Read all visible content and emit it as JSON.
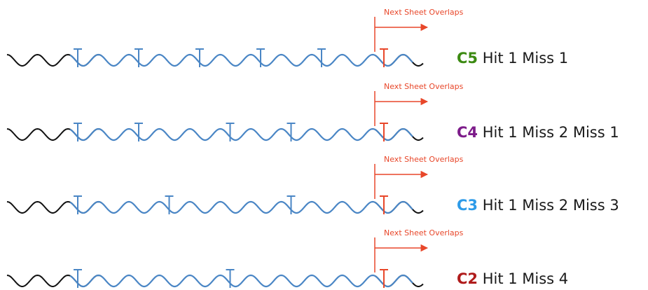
{
  "colors": {
    "sheet_blue": "#4a86c5",
    "sheet_black": "#111111",
    "overlap_red": "#e8472a",
    "c5": "#3c8a12",
    "c4": "#7d1c8a",
    "c3": "#2e9be8",
    "c2": "#b01c1c"
  },
  "overlap_label": "Next Sheet Overlaps",
  "rows": [
    {
      "code": "C5",
      "code_color": "#3c8a12",
      "description": "Hit 1 Miss 1",
      "fixings_crests": [
        2,
        4,
        6,
        8,
        10
      ],
      "end_crest": 12
    },
    {
      "code": "C4",
      "code_color": "#7d1c8a",
      "description": "Hit 1 Miss 2 Miss 1",
      "fixings_crests": [
        2,
        4,
        7,
        9
      ],
      "end_crest": 12
    },
    {
      "code": "C3",
      "code_color": "#2e9be8",
      "description": "Hit 1 Miss 2 Miss 3",
      "fixings_crests": [
        2,
        5,
        9
      ],
      "end_crest": 12
    },
    {
      "code": "C2",
      "code_color": "#b01c1c",
      "description": "Hit 1 Miss 4",
      "fixings_crests": [
        2,
        7
      ],
      "end_crest": 12
    }
  ]
}
